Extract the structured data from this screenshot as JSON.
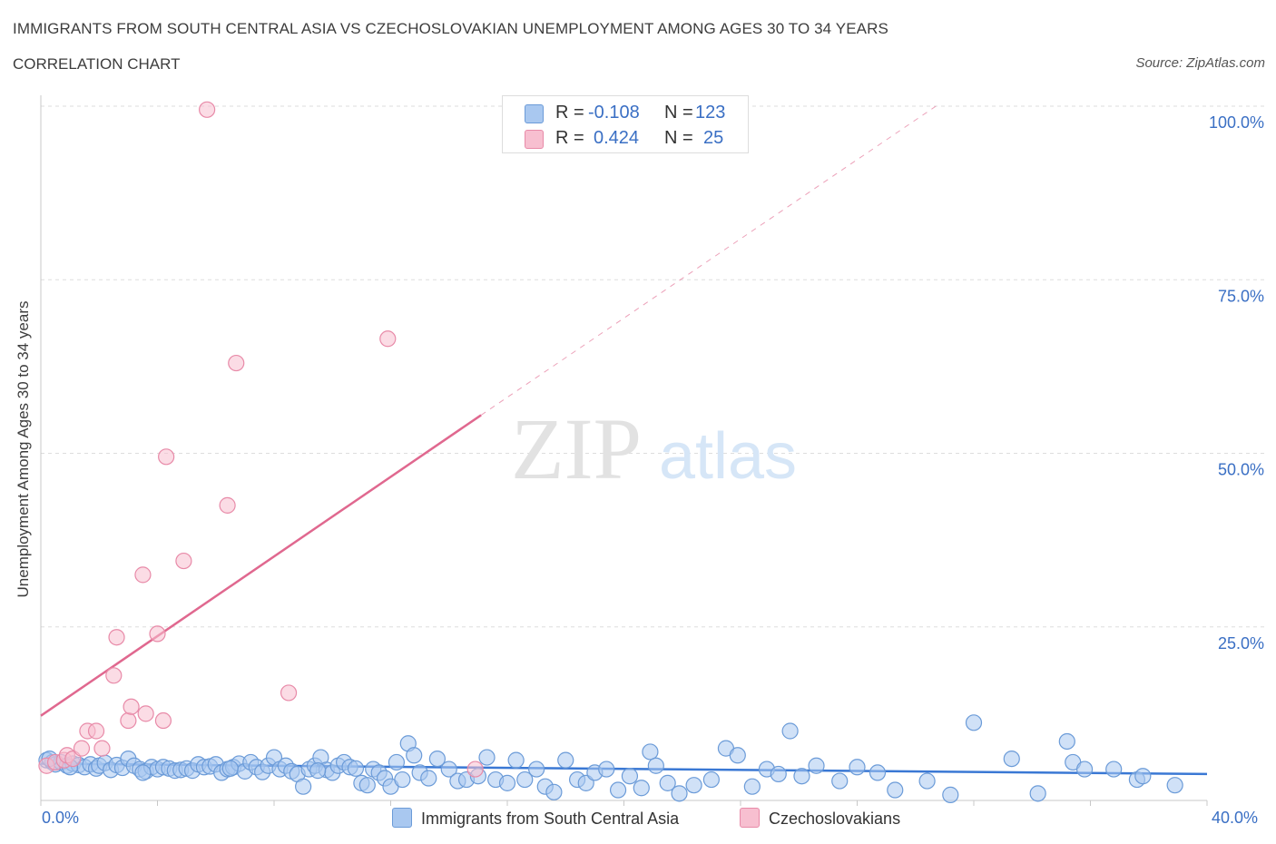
{
  "header": {
    "title": "IMMIGRANTS FROM SOUTH CENTRAL ASIA VS CZECHOSLOVAKIAN UNEMPLOYMENT AMONG AGES 30 TO 34 YEARS",
    "subtitle": "CORRELATION CHART",
    "source": "Source: ZipAtlas.com"
  },
  "watermark": {
    "zip": "ZIP",
    "atlas": "atlas"
  },
  "legend": {
    "rows": [
      {
        "r_label": "R =",
        "r_value": "-0.108",
        "n_label": "N =",
        "n_value": "123",
        "color": "#a9c8f0",
        "border": "#6b9bd8"
      },
      {
        "r_label": "R =",
        "r_value": "0.424",
        "n_label": "N =",
        "n_value": "25",
        "color": "#f7bfd0",
        "border": "#e88aa8"
      }
    ]
  },
  "chart_data": {
    "type": "scatter",
    "title": "IMMIGRANTS FROM SOUTH CENTRAL ASIA VS CZECHOSLOVAKIAN UNEMPLOYMENT AMONG AGES 30 TO 34 YEARS",
    "xlabel": "",
    "ylabel": "Unemployment Among Ages 30 to 34 years",
    "xlim": [
      0,
      40
    ],
    "ylim": [
      0,
      100
    ],
    "x_tick_labels": [
      "0.0%",
      "40.0%"
    ],
    "y_tick_labels": [
      "25.0%",
      "50.0%",
      "75.0%",
      "100.0%"
    ],
    "y_ticks": [
      25,
      50,
      75,
      100
    ],
    "grid": true,
    "series": [
      {
        "name": "Immigrants from South Central Asia",
        "color": "#6b9bd8",
        "fill": "#a9c8f0",
        "trend": {
          "x": [
            0,
            40
          ],
          "y": [
            5.3,
            3.8
          ]
        },
        "points": [
          [
            0.2,
            5.8
          ],
          [
            0.4,
            5.5
          ],
          [
            0.5,
            5.2
          ],
          [
            0.7,
            5.5
          ],
          [
            0.9,
            5.0
          ],
          [
            1.1,
            5.3
          ],
          [
            1.3,
            5.1
          ],
          [
            1.5,
            4.8
          ],
          [
            1.7,
            5.2
          ],
          [
            1.9,
            4.6
          ],
          [
            2.0,
            5.0
          ],
          [
            2.2,
            5.4
          ],
          [
            2.4,
            4.4
          ],
          [
            2.6,
            5.1
          ],
          [
            2.8,
            4.7
          ],
          [
            3.0,
            6.0
          ],
          [
            3.2,
            5.0
          ],
          [
            3.4,
            4.5
          ],
          [
            3.6,
            4.2
          ],
          [
            3.8,
            4.8
          ],
          [
            4.0,
            4.5
          ],
          [
            4.2,
            4.8
          ],
          [
            4.4,
            4.6
          ],
          [
            4.6,
            4.3
          ],
          [
            4.8,
            4.4
          ],
          [
            5.0,
            4.6
          ],
          [
            5.2,
            4.3
          ],
          [
            5.4,
            5.2
          ],
          [
            5.6,
            4.8
          ],
          [
            5.8,
            4.9
          ],
          [
            6.0,
            5.2
          ],
          [
            6.2,
            4.0
          ],
          [
            6.4,
            4.5
          ],
          [
            6.6,
            4.8
          ],
          [
            6.8,
            5.3
          ],
          [
            7.0,
            4.2
          ],
          [
            7.2,
            5.5
          ],
          [
            7.4,
            4.8
          ],
          [
            7.6,
            4.1
          ],
          [
            7.8,
            5.0
          ],
          [
            8.0,
            6.2
          ],
          [
            8.2,
            4.5
          ],
          [
            8.4,
            5.0
          ],
          [
            8.6,
            4.2
          ],
          [
            8.8,
            3.8
          ],
          [
            9.0,
            2.0
          ],
          [
            9.2,
            4.5
          ],
          [
            9.4,
            5.0
          ],
          [
            9.6,
            6.2
          ],
          [
            9.8,
            4.4
          ],
          [
            10.0,
            4.0
          ],
          [
            10.2,
            5.0
          ],
          [
            10.4,
            5.5
          ],
          [
            10.6,
            4.8
          ],
          [
            10.8,
            4.6
          ],
          [
            11.0,
            2.5
          ],
          [
            11.2,
            2.2
          ],
          [
            11.4,
            4.5
          ],
          [
            11.6,
            4.0
          ],
          [
            11.8,
            3.2
          ],
          [
            12.0,
            2.0
          ],
          [
            12.2,
            5.5
          ],
          [
            12.4,
            3.0
          ],
          [
            12.6,
            8.2
          ],
          [
            12.8,
            6.5
          ],
          [
            13.0,
            4.0
          ],
          [
            13.3,
            3.2
          ],
          [
            13.6,
            6.0
          ],
          [
            14.0,
            4.5
          ],
          [
            14.3,
            2.8
          ],
          [
            14.6,
            3.0
          ],
          [
            15.0,
            3.5
          ],
          [
            15.3,
            6.2
          ],
          [
            15.6,
            3.0
          ],
          [
            16.0,
            2.5
          ],
          [
            16.3,
            5.8
          ],
          [
            16.6,
            3.0
          ],
          [
            17.0,
            4.5
          ],
          [
            17.3,
            2.0
          ],
          [
            17.6,
            1.2
          ],
          [
            18.0,
            5.8
          ],
          [
            18.4,
            3.0
          ],
          [
            18.7,
            2.5
          ],
          [
            19.0,
            4.0
          ],
          [
            19.4,
            4.5
          ],
          [
            19.8,
            1.5
          ],
          [
            20.2,
            3.5
          ],
          [
            20.6,
            1.8
          ],
          [
            20.9,
            7.0
          ],
          [
            21.1,
            5.0
          ],
          [
            21.5,
            2.5
          ],
          [
            21.9,
            1.0
          ],
          [
            22.4,
            2.2
          ],
          [
            23.0,
            3.0
          ],
          [
            23.5,
            7.5
          ],
          [
            23.9,
            6.5
          ],
          [
            24.4,
            2.0
          ],
          [
            24.9,
            4.5
          ],
          [
            25.3,
            3.8
          ],
          [
            25.7,
            10.0
          ],
          [
            26.1,
            3.5
          ],
          [
            26.6,
            5.0
          ],
          [
            27.4,
            2.8
          ],
          [
            28.0,
            4.8
          ],
          [
            28.7,
            4.0
          ],
          [
            29.3,
            1.5
          ],
          [
            30.4,
            2.8
          ],
          [
            31.2,
            0.8
          ],
          [
            32.0,
            11.2
          ],
          [
            33.3,
            6.0
          ],
          [
            34.2,
            1.0
          ],
          [
            35.2,
            8.5
          ],
          [
            35.4,
            5.5
          ],
          [
            35.8,
            4.5
          ],
          [
            36.8,
            4.5
          ],
          [
            37.6,
            3.0
          ],
          [
            37.8,
            3.5
          ],
          [
            38.9,
            2.2
          ],
          [
            0.3,
            6.0
          ],
          [
            1.0,
            4.8
          ],
          [
            3.5,
            4.0
          ],
          [
            6.5,
            4.6
          ],
          [
            9.5,
            4.3
          ]
        ]
      },
      {
        "name": "Czechoslovakians",
        "color": "#e88aa8",
        "fill": "#f7bfd0",
        "trend": {
          "x": [
            0,
            15.1
          ],
          "y": [
            12.2,
            55.5
          ]
        },
        "trend_extended": {
          "x": [
            15.1,
            30.7
          ],
          "y": [
            55.5,
            100
          ]
        },
        "points": [
          [
            0.2,
            5.0
          ],
          [
            0.5,
            5.5
          ],
          [
            0.8,
            5.8
          ],
          [
            0.9,
            6.5
          ],
          [
            1.1,
            6.0
          ],
          [
            1.4,
            7.5
          ],
          [
            1.6,
            10.0
          ],
          [
            1.9,
            10.0
          ],
          [
            2.1,
            7.5
          ],
          [
            2.5,
            18.0
          ],
          [
            2.6,
            23.5
          ],
          [
            3.0,
            11.5
          ],
          [
            3.1,
            13.5
          ],
          [
            3.5,
            32.5
          ],
          [
            3.6,
            12.5
          ],
          [
            4.0,
            24.0
          ],
          [
            4.2,
            11.5
          ],
          [
            4.3,
            49.5
          ],
          [
            4.9,
            34.5
          ],
          [
            5.7,
            99.5
          ],
          [
            6.4,
            42.5
          ],
          [
            6.7,
            63.0
          ],
          [
            8.5,
            15.5
          ],
          [
            11.9,
            66.5
          ],
          [
            14.9,
            4.5
          ]
        ]
      }
    ]
  },
  "bottom_legend": [
    "Immigrants from South Central Asia",
    "Czechoslovakians"
  ]
}
